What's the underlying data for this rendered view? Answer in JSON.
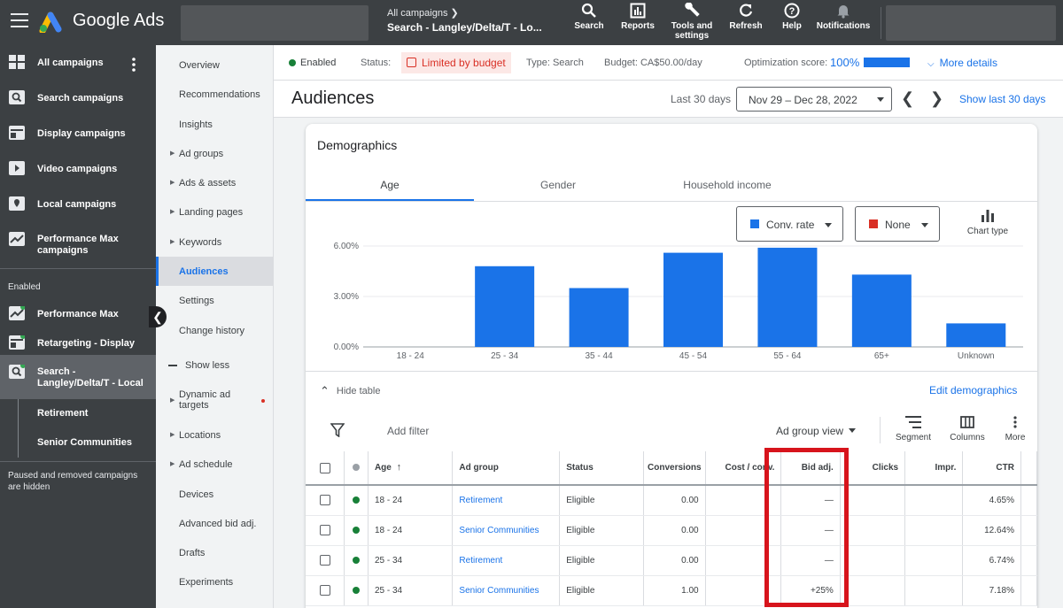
{
  "topbar": {
    "brand": "Google Ads",
    "crumb_parent": "All campaigns",
    "crumb_current": "Search - Langley/Delta/T - Lo...",
    "buttons": [
      {
        "label": "Search",
        "icon": "search-icon"
      },
      {
        "label": "Reports",
        "icon": "reports-icon"
      },
      {
        "label": "Tools and settings",
        "icon": "wrench-icon"
      },
      {
        "label": "Refresh",
        "icon": "refresh-icon"
      },
      {
        "label": "Help",
        "icon": "help-icon"
      },
      {
        "label": "Notifications",
        "icon": "bell-icon"
      }
    ]
  },
  "sidebar": {
    "items": [
      {
        "label": "All campaigns",
        "icon": "grid-icon"
      },
      {
        "label": "Search campaigns",
        "icon": "search-campaign-icon"
      },
      {
        "label": "Display campaigns",
        "icon": "display-icon"
      },
      {
        "label": "Video campaigns",
        "icon": "video-icon"
      },
      {
        "label": "Local campaigns",
        "icon": "location-icon"
      },
      {
        "label": "Performance Max campaigns",
        "icon": "performance-icon"
      }
    ],
    "enabled_label": "Enabled",
    "enabled_items": [
      {
        "label": "Performance Max",
        "icon": "performance-icon"
      },
      {
        "label": "Retargeting - Display",
        "icon": "display-icon"
      },
      {
        "label": "Search - Langley/Delta/T - Local",
        "icon": "search-campaign-icon"
      }
    ],
    "sub_items": [
      "Retirement",
      "Senior Communities"
    ],
    "note": "Paused and removed campaigns are hidden"
  },
  "pagenav": {
    "items": [
      {
        "label": "Overview",
        "caret": false
      },
      {
        "label": "Recommendations",
        "caret": false
      },
      {
        "label": "Insights",
        "caret": false
      },
      {
        "label": "Ad groups",
        "caret": true
      },
      {
        "label": "Ads & assets",
        "caret": true
      },
      {
        "label": "Landing pages",
        "caret": true
      },
      {
        "label": "Keywords",
        "caret": true
      },
      {
        "label": "Audiences",
        "caret": false,
        "active": true
      },
      {
        "label": "Settings",
        "caret": false
      },
      {
        "label": "Change history",
        "caret": false
      },
      {
        "label": "Show less",
        "caret": false
      },
      {
        "label": "Dynamic ad targets",
        "caret": true
      },
      {
        "label": "Locations",
        "caret": true
      },
      {
        "label": "Ad schedule",
        "caret": true
      },
      {
        "label": "Devices",
        "caret": false
      },
      {
        "label": "Advanced bid adj.",
        "caret": false
      },
      {
        "label": "Drafts",
        "caret": false
      },
      {
        "label": "Experiments",
        "caret": false
      }
    ]
  },
  "status": {
    "enabled": "Enabled",
    "status_label": "Status:",
    "status_value": "Limited by budget",
    "type": "Type: Search",
    "budget": "Budget: CA$50.00/day",
    "opt_label": "Optimization score:",
    "opt_value": "100%",
    "opt_fraction": 1.0,
    "more_details": "More details"
  },
  "header": {
    "title": "Audiences",
    "period": "Last 30 days",
    "date_range": "Nov 29 – Dec 28, 2022",
    "show_last": "Show last 30 days"
  },
  "demographics": {
    "title": "Demographics",
    "tabs": [
      "Age",
      "Gender",
      "Household income"
    ],
    "metric1": "Conv. rate",
    "metric1_color": "#1a73e8",
    "metric2": "None",
    "metric2_color": "#d93025",
    "chart_type_label": "Chart type",
    "hide_table": "Hide table",
    "edit": "Edit demographics"
  },
  "chart_data": {
    "type": "bar",
    "categories": [
      "18 - 24",
      "25 - 34",
      "35 - 44",
      "45 - 54",
      "55 - 64",
      "65+",
      "Unknown"
    ],
    "values": [
      0,
      4.8,
      3.5,
      5.6,
      5.9,
      4.3,
      1.4
    ],
    "ylim": [
      0,
      6
    ],
    "yticks": [
      "0.00%",
      "3.00%",
      "6.00%"
    ],
    "ytick_values": [
      0,
      3,
      6
    ],
    "color": "#1a73e8"
  },
  "toolbar": {
    "add_filter": "Add filter",
    "view": "Ad group view",
    "segment": "Segment",
    "columns": "Columns",
    "more": "More"
  },
  "table": {
    "headers": {
      "age": "Age",
      "ad_group": "Ad group",
      "status": "Status",
      "conversions": "Conversions",
      "cost_conv": "Cost / conv.",
      "bid_adj": "Bid adj.",
      "clicks": "Clicks",
      "impr": "Impr.",
      "ctr": "CTR"
    },
    "rows": [
      {
        "age": "18 - 24",
        "ad_group": "Retirement",
        "status": "Eligible",
        "conversions": "0.00",
        "cost_conv": "",
        "bid_adj": "—",
        "clicks": "",
        "impr": "",
        "ctr": "4.65%"
      },
      {
        "age": "18 - 24",
        "ad_group": "Senior Communities",
        "status": "Eligible",
        "conversions": "0.00",
        "cost_conv": "",
        "bid_adj": "—",
        "clicks": "",
        "impr": "",
        "ctr": "12.64%"
      },
      {
        "age": "25 - 34",
        "ad_group": "Retirement",
        "status": "Eligible",
        "conversions": "0.00",
        "cost_conv": "",
        "bid_adj": "—",
        "clicks": "",
        "impr": "",
        "ctr": "6.74%"
      },
      {
        "age": "25 - 34",
        "ad_group": "Senior Communities",
        "status": "Eligible",
        "conversions": "1.00",
        "cost_conv": "",
        "bid_adj": "+25%",
        "clicks": "",
        "impr": "",
        "ctr": "7.18%"
      }
    ]
  }
}
